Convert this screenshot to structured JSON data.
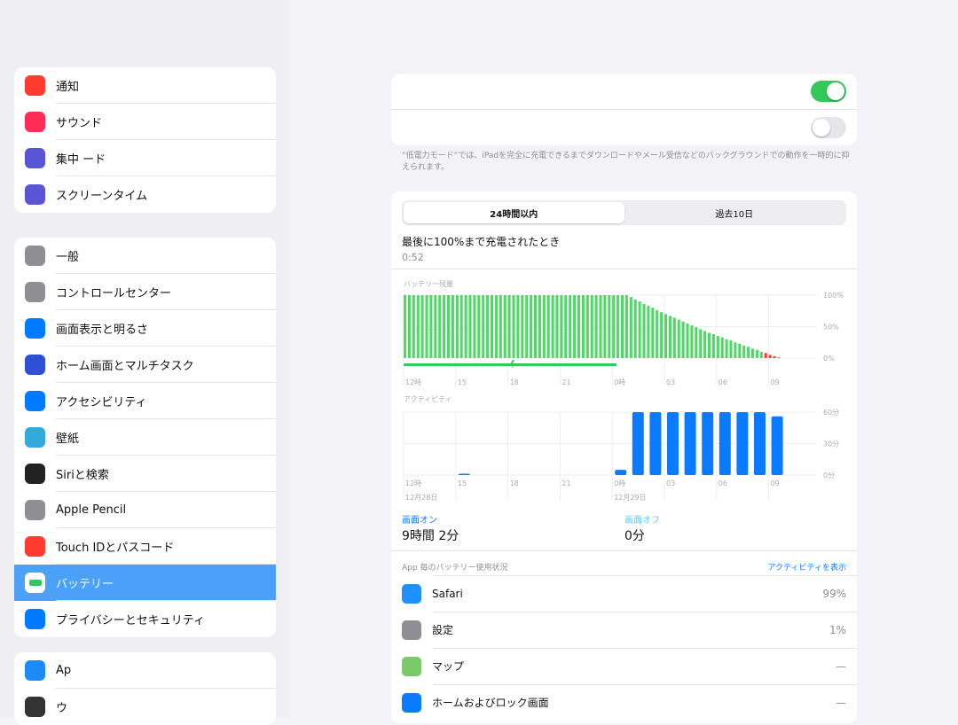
{
  "sidebar": {
    "group1": [
      {
        "label": "通知",
        "icon": "bell-icon",
        "color": "#ff3b30"
      },
      {
        "label": "サウンド",
        "icon": "speaker-icon",
        "color": "#ff2d55"
      },
      {
        "label": "集中 ード",
        "icon": "moon-icon",
        "color": "#5856d6"
      },
      {
        "label": "スクリーンタイム",
        "icon": "hourglass-icon",
        "color": "#5856d6"
      }
    ],
    "group2": [
      {
        "label": "一般",
        "icon": "gear-icon",
        "color": "#8e8e93"
      },
      {
        "label": "コントロールセンター",
        "icon": "switches-icon",
        "color": "#8e8e93"
      },
      {
        "label": "画面表示と明るさ",
        "icon": "text-size-icon",
        "color": "#007aff"
      },
      {
        "label": "ホーム画面とマルチタスク",
        "icon": "grid-icon",
        "color": "#2f4fd6"
      },
      {
        "label": "アクセシビリティ",
        "icon": "accessibility-icon",
        "color": "#007aff"
      },
      {
        "label": "壁紙",
        "icon": "flower-icon",
        "color": "#34aadc"
      },
      {
        "label": "Siriと検索",
        "icon": "siri-icon",
        "color": "#222"
      },
      {
        "label": "Apple Pencil",
        "icon": "pencil-icon",
        "color": "#8e8e93"
      },
      {
        "label": "Touch IDとパスコード",
        "icon": "fingerprint-icon",
        "color": "#ff3b30"
      },
      {
        "label": "バッテリー",
        "icon": "battery-icon",
        "color": "#34c759",
        "selected": true
      },
      {
        "label": "プライバシーとセキュリティ",
        "icon": "hand-icon",
        "color": "#007aff"
      }
    ],
    "group3": [
      {
        "label": "Ap",
        "icon": "app-store-icon",
        "color": "#1c8bf5"
      },
      {
        "label": "ウ",
        "icon": "wallet-icon",
        "color": "#333"
      }
    ]
  },
  "toggles": {
    "first_on": true,
    "second_on": false
  },
  "footnote": "“低電力モード”では、iPadを完全に充電できるまでダウンロードやメール受信などのバックグラウンドでの動作を一時的に抑えられます。",
  "segments": {
    "tab1": "24時間以内",
    "tab2": "過去10日",
    "active": "24時間以内"
  },
  "last_charge": {
    "title": "最後に100%まで充電されたとき",
    "time": "0:52"
  },
  "chart_data": [
    {
      "type": "bar",
      "title": "バッテリー残量",
      "interval": "15分",
      "x_ticks": [
        "12時",
        "15",
        "18",
        "21",
        "0時",
        "03",
        "06",
        "09"
      ],
      "y_ticks": [
        "100%",
        "50%",
        "0%"
      ],
      "ylim": [
        0,
        100
      ],
      "values": [
        100,
        100,
        100,
        100,
        100,
        100,
        100,
        100,
        100,
        100,
        100,
        100,
        100,
        100,
        100,
        100,
        100,
        100,
        100,
        100,
        100,
        100,
        100,
        100,
        100,
        100,
        100,
        100,
        100,
        100,
        100,
        100,
        100,
        100,
        100,
        100,
        100,
        100,
        100,
        100,
        100,
        100,
        100,
        100,
        100,
        100,
        100,
        100,
        100,
        100,
        100,
        100,
        97,
        93,
        90,
        86,
        83,
        80,
        76,
        73,
        70,
        67,
        64,
        61,
        58,
        55,
        52,
        49,
        46,
        43,
        40,
        38,
        35,
        33,
        30,
        28,
        25,
        23,
        20,
        18,
        15,
        13,
        10,
        8,
        5,
        3,
        1
      ],
      "charging_period": [
        "12時",
        "0:15"
      ],
      "colors": {
        "normal": "#4cd964",
        "low": "#ff3b30",
        "charging": "#34c759"
      }
    },
    {
      "type": "bar",
      "title": "アクティビティ",
      "interval": "1時間",
      "x_ticks": [
        "12時",
        "15",
        "18",
        "21",
        "0時",
        "03",
        "06",
        "09"
      ],
      "dates": [
        "12月28日",
        "12月29日"
      ],
      "y_ticks": [
        "60分",
        "30分",
        "0分"
      ],
      "ylim": [
        0,
        60
      ],
      "categories": [
        "12",
        "13",
        "14",
        "15",
        "16",
        "17",
        "18",
        "19",
        "20",
        "21",
        "22",
        "23",
        "0",
        "1",
        "2",
        "3",
        "4",
        "5",
        "6",
        "7",
        "8",
        "9"
      ],
      "values": [
        0,
        0,
        0,
        1,
        0,
        0,
        0,
        0,
        0,
        0,
        0,
        0,
        5,
        60,
        60,
        60,
        60,
        60,
        60,
        60,
        60,
        56
      ],
      "color": "#0a7aff"
    }
  ],
  "screen": {
    "on_label": "画面オン",
    "on_value": "9時間 2分",
    "off_label": "画面オフ",
    "off_value": "0分"
  },
  "usage": {
    "header": "App 毎のバッテリー使用状況",
    "show_activity": "アクティビティを表示",
    "apps": [
      {
        "name": "Safari",
        "value": "99%",
        "icon": "safari-icon",
        "color": "#1e90ff"
      },
      {
        "name": "設定",
        "value": "1%",
        "icon": "gear-icon",
        "color": "#8e8e93"
      },
      {
        "name": "マップ",
        "value": "—",
        "icon": "maps-icon",
        "color": "#7cc96b"
      },
      {
        "name": "ホームおよびロック画面",
        "value": "—",
        "icon": "home-screen-icon",
        "color": "#0a7aff"
      }
    ]
  }
}
